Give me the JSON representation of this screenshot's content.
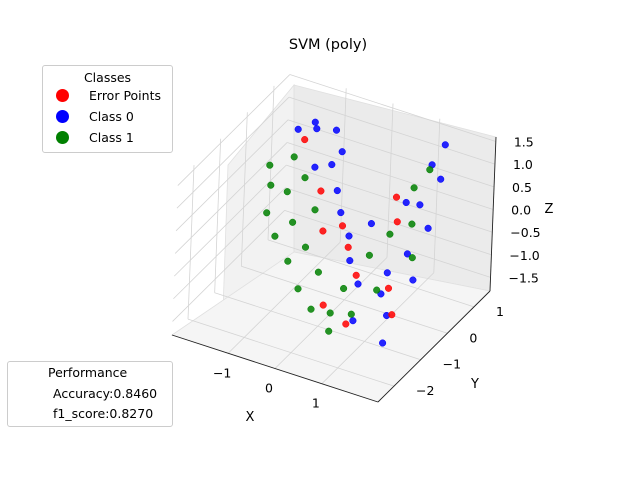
{
  "chart_data": {
    "type": "scatter",
    "projection": "3d",
    "title": "SVM (poly)",
    "xlabel": "X",
    "ylabel": "Y",
    "zlabel": "Z",
    "xlim": [
      -2.2,
      2.2
    ],
    "ylim": [
      -2.6,
      1.6
    ],
    "zlim": [
      -1.8,
      1.6
    ],
    "xticks": [
      "−1",
      "0",
      "1"
    ],
    "yticks": [
      "−2",
      "−1",
      "0",
      "1"
    ],
    "zticks": [
      "−1.5",
      "−1.0",
      "−0.5",
      "0.0",
      "0.5",
      "1.0",
      "1.5"
    ],
    "grid": true,
    "legend": {
      "title": "Classes",
      "placement": "upper-left",
      "entries": [
        {
          "label": "Error Points",
          "color": "#ff0000"
        },
        {
          "label": "Class 0",
          "color": "#0000ff"
        },
        {
          "label": "Class 1",
          "color": "#008000"
        }
      ]
    },
    "series": [
      {
        "name": "Class 0",
        "color": "#0000ff",
        "points": [
          [
            -1.6,
            0.9,
            0.9
          ],
          [
            -1.3,
            1.0,
            1.1
          ],
          [
            -0.9,
            1.1,
            1.0
          ],
          [
            -0.6,
            0.8,
            0.8
          ],
          [
            -1.0,
            0.5,
            0.5
          ],
          [
            -0.4,
            0.3,
            0.3
          ],
          [
            -0.2,
            0.1,
            0.0
          ],
          [
            0.1,
            -0.1,
            -0.3
          ],
          [
            0.3,
            -0.4,
            -0.6
          ],
          [
            0.6,
            -0.6,
            -0.9
          ],
          [
            1.2,
            1.0,
            1.0
          ],
          [
            1.5,
            0.8,
            0.9
          ],
          [
            1.3,
            0.4,
            0.5
          ],
          [
            1.6,
            0.2,
            0.2
          ],
          [
            1.4,
            -0.2,
            -0.2
          ],
          [
            1.7,
            -0.5,
            -0.5
          ],
          [
            1.2,
            -0.8,
            -0.8
          ],
          [
            1.5,
            -1.1,
            -1.0
          ],
          [
            0.9,
            -1.3,
            -1.2
          ],
          [
            1.6,
            -1.4,
            -1.4
          ],
          [
            1.3,
            1.3,
            1.3
          ],
          [
            -1.1,
            0.7,
            1.2
          ],
          [
            -0.7,
            0.6,
            0.6
          ],
          [
            0.4,
            0.2,
            -0.1
          ],
          [
            0.9,
            0.6,
            0.3
          ],
          [
            1.1,
            -0.4,
            -0.6
          ]
        ]
      },
      {
        "name": "Class 1",
        "color": "#008000",
        "points": [
          [
            -1.9,
            0.4,
            0.3
          ],
          [
            -1.7,
            0.1,
            0.1
          ],
          [
            -1.6,
            -0.2,
            -0.3
          ],
          [
            -1.4,
            0.2,
            0.0
          ],
          [
            -1.3,
            -0.4,
            -0.6
          ],
          [
            -1.1,
            -0.1,
            -0.4
          ],
          [
            -0.9,
            -0.6,
            -0.9
          ],
          [
            -0.7,
            -0.3,
            -0.7
          ],
          [
            -0.5,
            -0.9,
            -1.2
          ],
          [
            -0.3,
            -0.5,
            -1.0
          ],
          [
            -0.1,
            -1.1,
            -1.4
          ],
          [
            0.2,
            -0.9,
            -1.5
          ],
          [
            0.4,
            -1.3,
            -1.6
          ],
          [
            0.7,
            -1.0,
            -1.3
          ],
          [
            1.0,
            0.7,
            0.6
          ],
          [
            1.2,
            0.3,
            0.1
          ],
          [
            1.4,
            0.0,
            -0.4
          ],
          [
            0.8,
            0.2,
            -0.2
          ],
          [
            0.6,
            -0.2,
            -0.5
          ],
          [
            1.0,
            -0.6,
            -0.9
          ],
          [
            -1.2,
            0.5,
            0.2
          ],
          [
            -0.8,
            0.2,
            -0.2
          ],
          [
            -1.5,
            0.6,
            0.5
          ],
          [
            0.3,
            -0.6,
            -1.1
          ],
          [
            1.1,
            1.1,
            0.8
          ]
        ]
      },
      {
        "name": "Error Points",
        "color": "#ff0000",
        "points": [
          [
            -1.4,
            0.8,
            0.8
          ],
          [
            -0.8,
            0.4,
            0.1
          ],
          [
            -0.1,
            0.0,
            -0.2
          ],
          [
            0.2,
            -0.3,
            -0.4
          ],
          [
            0.5,
            -0.5,
            -0.8
          ],
          [
            0.8,
            0.4,
            0.5
          ],
          [
            1.0,
            0.1,
            0.2
          ],
          [
            1.3,
            -0.7,
            -0.7
          ],
          [
            0.7,
            -1.2,
            -1.4
          ],
          [
            1.5,
            -0.9,
            -1.1
          ],
          [
            0.1,
            -1.0,
            -1.3
          ],
          [
            -0.4,
            -0.2,
            -0.3
          ]
        ]
      }
    ]
  },
  "performance": {
    "title": "Performance",
    "accuracy": "Accuracy:0.8460",
    "f1": "f1_score:0.8270"
  }
}
